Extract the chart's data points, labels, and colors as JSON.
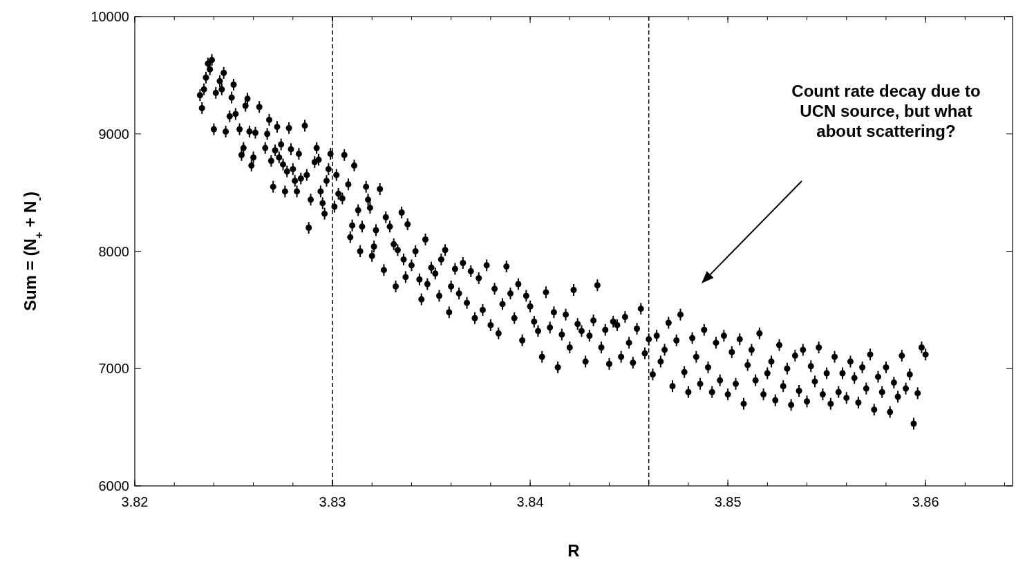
{
  "chart_data": {
    "type": "scatter",
    "xlabel": "R",
    "ylabel": "Sum = (N$_{+}$ + N$_{-}$)",
    "xlim": [
      3.82,
      3.8644
    ],
    "ylim": [
      6000,
      10000
    ],
    "xticks": [
      3.82,
      3.83,
      3.84,
      3.85,
      3.86
    ],
    "yticks": [
      6000,
      7000,
      8000,
      9000,
      10000
    ],
    "grid": false,
    "marker": "circle",
    "ref_lines": [
      {
        "axis": "x",
        "value": 3.83,
        "line_style": "dashed",
        "color": "#000000"
      },
      {
        "axis": "x",
        "value": 3.846,
        "line_style": "dashed",
        "color": "#000000"
      }
    ],
    "annotations": [
      "Count rate decay due to\nUCN source, but what\nabout scattering?"
    ],
    "series": [
      {
        "color": "#000000",
        "x": [
          3.8233,
          3.8234,
          3.8235,
          3.8236,
          3.8237,
          3.8238,
          3.8239,
          3.824,
          3.8241,
          3.8243,
          3.8244,
          3.8245,
          3.8246,
          3.8248,
          3.8249,
          3.825,
          3.8251,
          3.8253,
          3.8254,
          3.8255,
          3.8256,
          3.8257,
          3.8258,
          3.8259,
          3.826,
          3.8261,
          3.8263,
          3.8266,
          3.8267,
          3.8268,
          3.8269,
          3.827,
          3.8271,
          3.8272,
          3.8273,
          3.8274,
          3.8275,
          3.8276,
          3.8277,
          3.8278,
          3.8279,
          3.828,
          3.8281,
          3.8282,
          3.8283,
          3.8284,
          3.8286,
          3.8287,
          3.8288,
          3.8289,
          3.8291,
          3.8292,
          3.8293,
          3.8294,
          3.8295,
          3.8296,
          3.8297,
          3.8298,
          3.8299,
          3.8301,
          3.8302,
          3.8303,
          3.8305,
          3.8306,
          3.8308,
          3.8309,
          3.831,
          3.8311,
          3.8313,
          3.8314,
          3.8315,
          3.8317,
          3.8318,
          3.8319,
          3.832,
          3.8321,
          3.8322,
          3.8324,
          3.8326,
          3.8327,
          3.8329,
          3.8331,
          3.8332,
          3.8333,
          3.8335,
          3.8336,
          3.8337,
          3.8338,
          3.834,
          3.8342,
          3.8344,
          3.8345,
          3.8347,
          3.8348,
          3.835,
          3.8352,
          3.8354,
          3.8355,
          3.8357,
          3.8359,
          3.836,
          3.8362,
          3.8364,
          3.8366,
          3.8368,
          3.837,
          3.8372,
          3.8374,
          3.8376,
          3.8378,
          3.838,
          3.8382,
          3.8384,
          3.8386,
          3.8388,
          3.839,
          3.8392,
          3.8394,
          3.8396,
          3.8398,
          3.84,
          3.8402,
          3.8404,
          3.8406,
          3.8408,
          3.841,
          3.8412,
          3.8414,
          3.8416,
          3.8418,
          3.842,
          3.8422,
          3.8424,
          3.8426,
          3.8428,
          3.843,
          3.8432,
          3.8434,
          3.8436,
          3.8438,
          3.844,
          3.8442,
          3.8444,
          3.8446,
          3.8448,
          3.845,
          3.8452,
          3.8454,
          3.8456,
          3.8458,
          3.846,
          3.8462,
          3.8464,
          3.8466,
          3.8468,
          3.847,
          3.8472,
          3.8474,
          3.8476,
          3.8478,
          3.848,
          3.8482,
          3.8484,
          3.8486,
          3.8488,
          3.849,
          3.8492,
          3.8494,
          3.8496,
          3.8498,
          3.85,
          3.8502,
          3.8504,
          3.8506,
          3.8508,
          3.851,
          3.8512,
          3.8514,
          3.8516,
          3.8518,
          3.852,
          3.8522,
          3.8524,
          3.8526,
          3.8528,
          3.853,
          3.8532,
          3.8534,
          3.8536,
          3.8538,
          3.854,
          3.8542,
          3.8544,
          3.8546,
          3.8548,
          3.855,
          3.8552,
          3.8554,
          3.8556,
          3.8558,
          3.856,
          3.8562,
          3.8564,
          3.8566,
          3.8568,
          3.857,
          3.8572,
          3.8574,
          3.8576,
          3.8578,
          3.858,
          3.8582,
          3.8584,
          3.8586,
          3.8588,
          3.859,
          3.8592,
          3.8594,
          3.8596,
          3.8598,
          3.86
        ],
        "values": [
          9330,
          9220,
          9380,
          9480,
          9600,
          9550,
          9630,
          9040,
          9350,
          9450,
          9380,
          9520,
          9020,
          9150,
          9310,
          9420,
          9170,
          9040,
          8820,
          8880,
          9240,
          9300,
          9020,
          8730,
          8800,
          9010,
          9230,
          8880,
          9000,
          9120,
          8770,
          8550,
          8860,
          9060,
          8800,
          8910,
          8740,
          8510,
          8680,
          9050,
          8870,
          8700,
          8600,
          8510,
          8830,
          8620,
          9070,
          8650,
          8200,
          8440,
          8760,
          8880,
          8780,
          8510,
          8410,
          8320,
          8600,
          8700,
          8830,
          8380,
          8650,
          8490,
          8450,
          8820,
          8570,
          8120,
          8220,
          8730,
          8350,
          8000,
          8210,
          8550,
          8440,
          8370,
          7960,
          8040,
          8180,
          8530,
          7840,
          8290,
          8210,
          8060,
          7700,
          8010,
          8330,
          7930,
          7780,
          8230,
          7880,
          8000,
          7760,
          7590,
          8100,
          7720,
          7860,
          7810,
          7620,
          7930,
          8010,
          7480,
          7700,
          7850,
          7640,
          7900,
          7560,
          7830,
          7430,
          7770,
          7500,
          7880,
          7370,
          7680,
          7300,
          7550,
          7870,
          7640,
          7430,
          7720,
          7240,
          7620,
          7530,
          7400,
          7320,
          7100,
          7650,
          7350,
          7480,
          7010,
          7290,
          7460,
          7180,
          7670,
          7380,
          7320,
          7060,
          7280,
          7410,
          7710,
          7180,
          7330,
          7040,
          7400,
          7370,
          7100,
          7440,
          7220,
          7050,
          7340,
          7510,
          7130,
          7250,
          6950,
          7280,
          7060,
          7160,
          7390,
          6850,
          7240,
          7460,
          6970,
          6800,
          7260,
          7100,
          6870,
          7330,
          7010,
          6800,
          7220,
          6900,
          7280,
          6780,
          7140,
          6870,
          7250,
          6700,
          7030,
          7160,
          6900,
          7300,
          6780,
          6960,
          7060,
          6730,
          7200,
          6850,
          7000,
          6690,
          7110,
          6810,
          7160,
          6720,
          7020,
          6890,
          7180,
          6780,
          6960,
          6700,
          7100,
          6800,
          6960,
          6750,
          7060,
          6920,
          6710,
          7010,
          6830,
          7120,
          6650,
          6930,
          6800,
          7010,
          6630,
          6880,
          6760,
          7110,
          6830,
          6950,
          6530,
          6790,
          7180,
          7120
        ],
        "errors": [
          50,
          50,
          50,
          50,
          50,
          50,
          50,
          50,
          50,
          50,
          50,
          50,
          50,
          50,
          50,
          50,
          50,
          50,
          50,
          50,
          50,
          50,
          50,
          50,
          50,
          50,
          50,
          50,
          50,
          50,
          50,
          50,
          50,
          50,
          50,
          50,
          50,
          50,
          50,
          50,
          50,
          50,
          50,
          50,
          50,
          50,
          50,
          50,
          50,
          50,
          50,
          50,
          50,
          50,
          50,
          50,
          50,
          50,
          50,
          50,
          50,
          50,
          50,
          50,
          50,
          50,
          50,
          50,
          50,
          50,
          50,
          50,
          50,
          50,
          50,
          50,
          50,
          50,
          50,
          50,
          50,
          50,
          50,
          50,
          50,
          50,
          50,
          50,
          50,
          50,
          50,
          50,
          50,
          50,
          50,
          50,
          50,
          50,
          50,
          50,
          50,
          50,
          50,
          50,
          50,
          50,
          50,
          50,
          50,
          50,
          50,
          50,
          50,
          50,
          50,
          50,
          50,
          50,
          50,
          50,
          50,
          50,
          50,
          50,
          50,
          50,
          50,
          50,
          50,
          50,
          50,
          50,
          50,
          50,
          50,
          50,
          50,
          50,
          50,
          50,
          50,
          50,
          50,
          50,
          50,
          50,
          50,
          50,
          50,
          50,
          50,
          50,
          50,
          50,
          50,
          50,
          50,
          50,
          50,
          50,
          50,
          50,
          50,
          50,
          50,
          50,
          50,
          50,
          50,
          50,
          50,
          50,
          50,
          50,
          50,
          50,
          50,
          50,
          50,
          50,
          50,
          50,
          50,
          50,
          50,
          50,
          50,
          50,
          50,
          50,
          50,
          50,
          50,
          50,
          50,
          50,
          50,
          50,
          50,
          50,
          50,
          50,
          50,
          50,
          50,
          50,
          50,
          50,
          50,
          50,
          50,
          50,
          50,
          50,
          50,
          50,
          50,
          50,
          50,
          50,
          50
        ]
      }
    ]
  }
}
